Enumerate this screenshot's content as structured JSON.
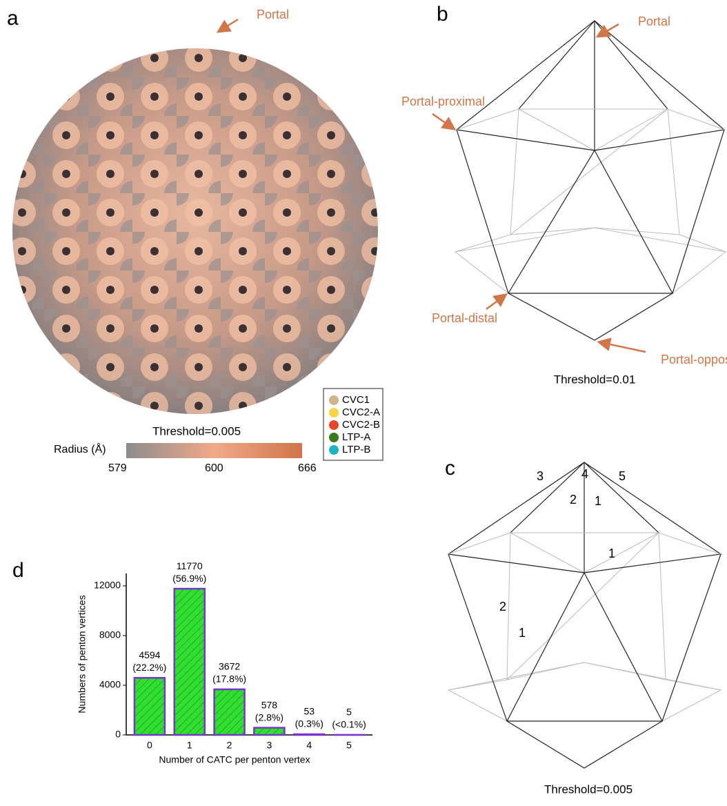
{
  "panels": {
    "a": {
      "label": "a",
      "annotation": "Portal",
      "threshold": "Threshold=0.005",
      "colorbar": {
        "title": "Radius (Å)",
        "ticks": [
          579,
          600,
          666
        ]
      },
      "legend": [
        {
          "name": "CVC1",
          "color": "#d2b48c"
        },
        {
          "name": "CVC2-A",
          "color": "#f6d44a"
        },
        {
          "name": "CVC2-B",
          "color": "#e8452a"
        },
        {
          "name": "LTP-A",
          "color": "#3b7a1c"
        },
        {
          "name": "LTP-B",
          "color": "#1fb2c2"
        }
      ]
    },
    "b": {
      "label": "b",
      "annotations": [
        "Portal",
        "Portal-proximal",
        "Portal-distal",
        "Portal-opposite"
      ],
      "threshold": "Threshold=0.01"
    },
    "c": {
      "label": "c",
      "site_labels": [
        "3",
        "4",
        "5",
        "2",
        "1",
        "1",
        "2",
        "1"
      ],
      "threshold": "Threshold=0.005"
    }
  },
  "chart_data": {
    "type": "bar",
    "panel_label": "d",
    "ylabel": "Numbers of penton vertices",
    "xlabel": "Number of CATC per penton vertex",
    "categories": [
      "0",
      "1",
      "2",
      "3",
      "4",
      "5"
    ],
    "values": [
      4594,
      11770,
      3672,
      578,
      53,
      5
    ],
    "shares": [
      "(22.2%)",
      "(56.9%)",
      "(17.8%)",
      "(2.8%)",
      "(0.3%)",
      "(<0.1%)"
    ],
    "color": "#2fe02f",
    "edgecolor": "#7b2fd6",
    "hatch": true,
    "ylim": [
      0,
      13000
    ],
    "yticks": [
      0,
      4000,
      8000,
      12000
    ]
  }
}
